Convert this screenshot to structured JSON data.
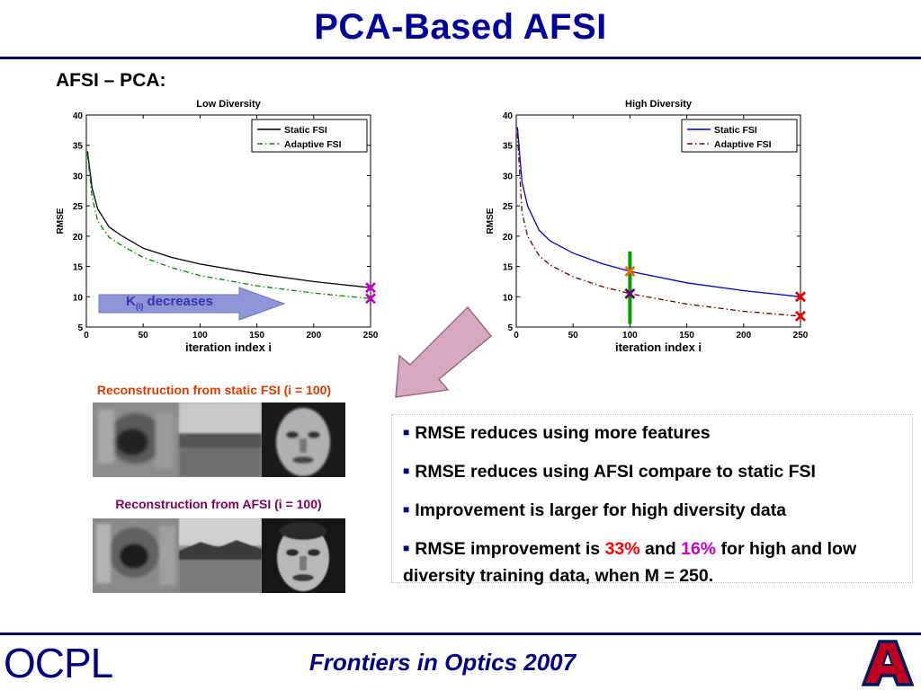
{
  "slide": {
    "title": "PCA-Based AFSI",
    "subtitle": "AFSI – PCA:",
    "footer": "Frontiers in Optics 2007",
    "logo_left": "OCPL",
    "logo_right": "A"
  },
  "annotations": {
    "arrow_label_main": "K",
    "arrow_label_sub": "(i)",
    "arrow_label_rest": " decreases"
  },
  "captions": {
    "static": "Reconstruction from static FSI (i = 100)",
    "afsi": "Reconstruction from AFSI (i = 100)"
  },
  "bullets": [
    {
      "text": "RMSE reduces using more features"
    },
    {
      "text": "RMSE reduces using AFSI compare to static FSI"
    },
    {
      "text": "Improvement is larger for high diversity data"
    },
    {
      "pre": "RMSE improvement is ",
      "v1": "33%",
      "mid": " and ",
      "v2": "16%",
      "post": " for high and low diversity training data, when M = 250."
    }
  ],
  "colors": {
    "title": "#000099",
    "red_value": "#ff0000",
    "magenta_value": "#cc00cc",
    "static_low": "#000000",
    "adaptive_low": "#008800",
    "static_high": "#0000cc",
    "adaptive_high": "#660000",
    "arrow_box": "#8f96d8",
    "big_arrow": "#d8a8c0"
  },
  "chart_data": [
    {
      "type": "line",
      "title": "Low Diversity",
      "xlabel": "iteration index i",
      "ylabel": "RMSE",
      "xlim": [
        0,
        250
      ],
      "ylim": [
        5,
        40
      ],
      "xticks": [
        0,
        50,
        100,
        150,
        200,
        250
      ],
      "yticks": [
        5,
        10,
        15,
        20,
        25,
        30,
        35,
        40
      ],
      "legend_position": "top-right",
      "series": [
        {
          "name": "Static FSI",
          "color": "#000000",
          "dash": "solid",
          "x": [
            1,
            5,
            10,
            20,
            30,
            50,
            75,
            100,
            150,
            200,
            250
          ],
          "values": [
            34,
            28,
            24.5,
            21.5,
            20.2,
            18,
            16.5,
            15.4,
            13.8,
            12.5,
            11.5
          ]
        },
        {
          "name": "Adaptive FSI",
          "color": "#008800",
          "dash": "dashdot",
          "x": [
            1,
            5,
            10,
            20,
            30,
            50,
            75,
            100,
            150,
            200,
            250
          ],
          "values": [
            33.5,
            26.5,
            22.5,
            19.8,
            18.6,
            16.5,
            14.8,
            13.5,
            11.8,
            10.6,
            9.7
          ]
        }
      ],
      "markers": [
        {
          "x": 250,
          "y": 11.5,
          "color": "#cc00cc"
        },
        {
          "x": 250,
          "y": 9.7,
          "color": "#cc00cc"
        }
      ]
    },
    {
      "type": "line",
      "title": "High Diversity",
      "xlabel": "iteration index i",
      "ylabel": "RMSE",
      "xlim": [
        0,
        250
      ],
      "ylim": [
        5,
        40
      ],
      "xticks": [
        0,
        50,
        100,
        150,
        200,
        250
      ],
      "yticks": [
        5,
        10,
        15,
        20,
        25,
        30,
        35,
        40
      ],
      "legend_position": "top-right",
      "series": [
        {
          "name": "Static FSI",
          "color": "#0000cc",
          "dash": "solid",
          "x": [
            1,
            5,
            10,
            20,
            30,
            50,
            75,
            100,
            150,
            200,
            250
          ],
          "values": [
            38,
            29,
            25,
            21,
            19.2,
            17.2,
            15.5,
            14.2,
            12.3,
            11,
            10
          ]
        },
        {
          "name": "Adaptive FSI",
          "color": "#660000",
          "dash": "dashdot",
          "x": [
            1,
            5,
            10,
            20,
            30,
            50,
            75,
            100,
            150,
            200,
            250
          ],
          "values": [
            37,
            24,
            20,
            16.8,
            15.2,
            13.3,
            11.7,
            10.5,
            8.8,
            7.6,
            6.8
          ]
        }
      ],
      "markers": [
        {
          "x": 100,
          "y": 14.2,
          "color": "#ff6600"
        },
        {
          "x": 100,
          "y": 10.5,
          "color": "#660066"
        },
        {
          "x": 250,
          "y": 10,
          "color": "#ee0000"
        },
        {
          "x": 250,
          "y": 6.8,
          "color": "#ee0000"
        }
      ],
      "vline": {
        "x": 100,
        "y_from": 5.5,
        "y_to": 17.5,
        "color": "#009900"
      }
    }
  ]
}
